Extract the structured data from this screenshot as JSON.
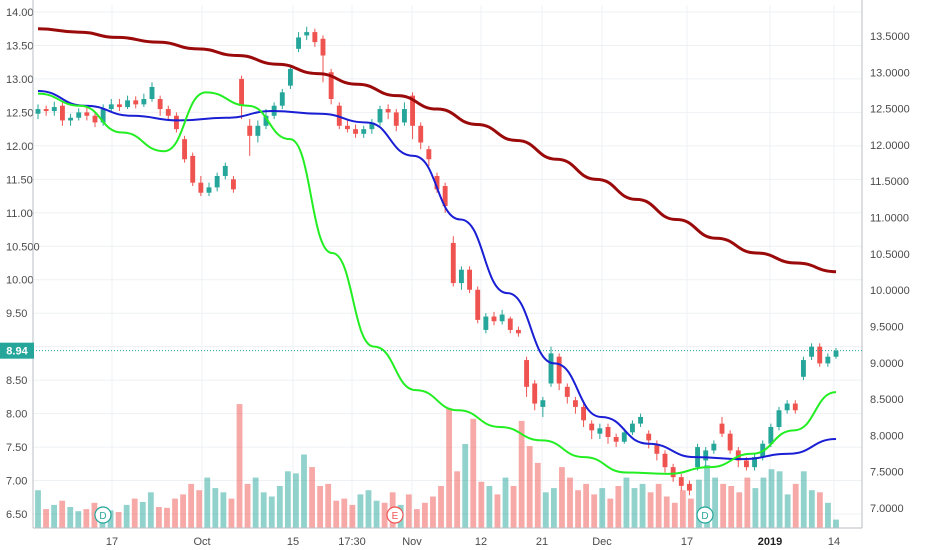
{
  "chart_data": {
    "type": "candlestick",
    "left_axis": {
      "ticks": [
        "14.00",
        "13.50",
        "13.00",
        "12.50",
        "12.00",
        "11.50",
        "11.00",
        "10.500",
        "10.00",
        "9.50",
        "9.00",
        "8.50",
        "8.00",
        "7.50",
        "7.00",
        "6.50"
      ],
      "values": [
        14.0,
        13.5,
        13.0,
        12.5,
        12.0,
        11.5,
        11.0,
        10.5,
        10.0,
        9.5,
        9.0,
        8.5,
        8.0,
        7.5,
        7.0,
        6.5
      ]
    },
    "right_axis": {
      "ticks": [
        "13.5000",
        "13.0000",
        "12.5000",
        "12.0000",
        "11.5000",
        "11.0000",
        "10.5000",
        "10.0000",
        "9.5000",
        "9.0000",
        "8.5000",
        "8.0000",
        "7.5000",
        "7.0000"
      ],
      "values": [
        13.5,
        13.0,
        12.5,
        12.0,
        11.5,
        11.0,
        10.5,
        10.0,
        9.5,
        9.0,
        8.5,
        8.0,
        7.5,
        7.0
      ]
    },
    "x_ticks": [
      {
        "label": "17",
        "bold": false
      },
      {
        "label": "Oct",
        "bold": false
      },
      {
        "label": "15",
        "bold": false
      },
      {
        "label": "17:30",
        "bold": false
      },
      {
        "label": "Nov",
        "bold": false
      },
      {
        "label": "12",
        "bold": false
      },
      {
        "label": "21",
        "bold": false
      },
      {
        "label": "Dec",
        "bold": false
      },
      {
        "label": "17",
        "bold": false
      },
      {
        "label": "2019",
        "bold": true
      },
      {
        "label": "14",
        "bold": false
      }
    ],
    "last_price": {
      "label": "8.94",
      "value": 8.94,
      "color": "#26a69a"
    },
    "badges": [
      {
        "letter": "D",
        "color": "#26a69a"
      },
      {
        "letter": "E",
        "color": "#ef5350"
      },
      {
        "letter": "D",
        "color": "#26a69a"
      }
    ],
    "candles": [
      [
        12.48,
        12.55,
        12.62,
        12.4
      ],
      [
        12.55,
        12.52,
        12.6,
        12.45
      ],
      [
        12.52,
        12.58,
        12.66,
        12.45
      ],
      [
        12.6,
        12.38,
        12.65,
        12.3
      ],
      [
        12.38,
        12.42,
        12.48,
        12.3
      ],
      [
        12.42,
        12.5,
        12.56,
        12.38
      ],
      [
        12.5,
        12.45,
        12.58,
        12.38
      ],
      [
        12.45,
        12.35,
        12.52,
        12.28
      ],
      [
        12.35,
        12.55,
        12.62,
        12.3
      ],
      [
        12.55,
        12.62,
        12.7,
        12.5
      ],
      [
        12.62,
        12.58,
        12.7,
        12.52
      ],
      [
        12.58,
        12.68,
        12.75,
        12.55
      ],
      [
        12.68,
        12.62,
        12.74,
        12.56
      ],
      [
        12.62,
        12.7,
        12.78,
        12.58
      ],
      [
        12.7,
        12.88,
        12.95,
        12.66
      ],
      [
        12.7,
        12.55,
        12.75,
        12.45
      ],
      [
        12.55,
        12.45,
        12.6,
        12.38
      ],
      [
        12.45,
        12.25,
        12.5,
        12.2
      ],
      [
        12.1,
        11.8,
        12.15,
        11.75
      ],
      [
        11.85,
        11.45,
        11.9,
        11.4
      ],
      [
        11.45,
        11.3,
        11.55,
        11.25
      ],
      [
        11.3,
        11.38,
        11.45,
        11.25
      ],
      [
        11.38,
        11.55,
        11.6,
        11.32
      ],
      [
        11.55,
        11.7,
        11.75,
        11.5
      ],
      [
        11.5,
        11.35,
        11.55,
        11.3
      ],
      [
        13.0,
        12.6,
        13.05,
        12.4
      ],
      [
        12.3,
        12.15,
        12.4,
        11.85
      ],
      [
        12.15,
        12.3,
        12.38,
        12.05
      ],
      [
        12.3,
        12.45,
        12.55,
        12.25
      ],
      [
        12.45,
        12.6,
        12.65,
        12.4
      ],
      [
        12.6,
        12.8,
        12.85,
        12.55
      ],
      [
        12.9,
        13.15,
        13.2,
        12.85
      ],
      [
        13.45,
        13.62,
        13.7,
        13.4
      ],
      [
        13.65,
        13.7,
        13.78,
        13.58
      ],
      [
        13.7,
        13.55,
        13.75,
        13.48
      ],
      [
        13.6,
        13.35,
        13.65,
        12.95
      ],
      [
        13.1,
        12.7,
        13.15,
        12.62
      ],
      [
        12.6,
        12.3,
        12.65,
        12.25
      ],
      [
        12.3,
        12.25,
        12.4,
        12.2
      ],
      [
        12.25,
        12.18,
        12.32,
        12.12
      ],
      [
        12.18,
        12.25,
        12.3,
        12.12
      ],
      [
        12.25,
        12.35,
        12.4,
        12.18
      ],
      [
        12.35,
        12.55,
        12.6,
        12.3
      ],
      [
        12.55,
        12.5,
        12.62,
        12.4
      ],
      [
        12.5,
        12.3,
        12.55,
        12.22
      ],
      [
        12.35,
        12.55,
        12.65,
        12.3
      ],
      [
        12.75,
        12.3,
        12.8,
        12.1
      ],
      [
        12.3,
        12.05,
        12.35,
        11.95
      ],
      [
        11.95,
        11.8,
        12.0,
        11.7
      ],
      [
        11.55,
        11.35,
        11.6,
        11.3
      ],
      [
        11.4,
        11.1,
        11.45,
        11.0
      ],
      [
        10.55,
        9.95,
        10.65,
        9.9
      ],
      [
        9.95,
        10.15,
        10.2,
        9.85
      ],
      [
        10.15,
        9.85,
        10.2,
        9.8
      ],
      [
        9.85,
        9.4,
        9.9,
        9.35
      ],
      [
        9.25,
        9.45,
        9.5,
        9.2
      ],
      [
        9.45,
        9.38,
        9.52,
        9.32
      ],
      [
        9.38,
        9.48,
        9.55,
        9.33
      ],
      [
        9.42,
        9.25,
        9.45,
        9.2
      ],
      [
        9.25,
        9.2,
        9.3,
        9.15
      ],
      [
        8.8,
        8.4,
        8.85,
        8.25
      ],
      [
        8.45,
        8.15,
        8.5,
        8.05
      ],
      [
        8.1,
        8.2,
        8.25,
        7.95
      ],
      [
        8.45,
        8.9,
        9.0,
        8.4
      ],
      [
        8.85,
        8.45,
        8.9,
        8.35
      ],
      [
        8.4,
        8.25,
        8.45,
        8.15
      ],
      [
        8.2,
        8.1,
        8.25,
        8.0
      ],
      [
        8.1,
        7.9,
        8.15,
        7.8
      ],
      [
        7.85,
        7.75,
        7.9,
        7.62
      ],
      [
        7.7,
        7.78,
        7.85,
        7.62
      ],
      [
        7.8,
        7.65,
        7.85,
        7.55
      ],
      [
        7.65,
        7.58,
        7.7,
        7.5
      ],
      [
        7.58,
        7.72,
        7.78,
        7.55
      ],
      [
        7.72,
        7.85,
        7.9,
        7.68
      ],
      [
        7.85,
        7.95,
        8.0,
        7.8
      ],
      [
        7.7,
        7.6,
        7.75,
        7.48
      ],
      [
        7.55,
        7.4,
        7.6,
        7.3
      ],
      [
        7.4,
        7.2,
        7.45,
        7.12
      ],
      [
        7.2,
        7.05,
        7.25,
        6.98
      ],
      [
        7.05,
        6.92,
        7.1,
        6.85
      ],
      [
        6.95,
        6.85,
        7.0,
        6.78
      ],
      [
        7.2,
        7.5,
        7.55,
        7.15
      ],
      [
        7.3,
        7.45,
        7.5,
        7.2
      ],
      [
        7.45,
        7.55,
        7.6,
        7.4
      ],
      [
        7.85,
        7.7,
        7.95,
        7.65
      ],
      [
        7.7,
        7.45,
        7.75,
        7.4
      ],
      [
        7.45,
        7.3,
        7.5,
        7.2
      ],
      [
        7.3,
        7.2,
        7.35,
        7.15
      ],
      [
        7.2,
        7.35,
        7.4,
        7.15
      ],
      [
        7.35,
        7.55,
        7.6,
        7.3
      ],
      [
        7.55,
        7.8,
        7.85,
        7.5
      ],
      [
        7.8,
        8.05,
        8.1,
        7.75
      ],
      [
        8.05,
        8.15,
        8.2,
        8.0
      ],
      [
        8.15,
        8.05,
        8.2,
        8.0
      ],
      [
        8.55,
        8.8,
        8.85,
        8.5
      ],
      [
        8.85,
        9.0,
        9.05,
        8.8
      ],
      [
        9.0,
        8.75,
        9.05,
        8.7
      ],
      [
        8.75,
        8.85,
        8.9,
        8.7
      ],
      [
        8.85,
        8.94,
        8.98,
        8.82
      ]
    ],
    "ma_dark_red": [
      13.75,
      13.7,
      13.62,
      13.55,
      13.45,
      13.35,
      13.22,
      13.08,
      12.92,
      12.75,
      12.55,
      12.32,
      12.08,
      11.8,
      11.5,
      11.2,
      10.9,
      10.62,
      10.4,
      10.25,
      10.12
    ],
    "ma_blue": [
      12.82,
      12.6,
      12.45,
      12.38,
      12.42,
      12.52,
      12.48,
      12.35,
      11.85,
      10.9,
      9.8,
      8.75,
      7.95,
      7.55,
      7.35,
      7.32,
      7.4,
      7.62
    ],
    "ma_green": [
      12.78,
      12.6,
      12.2,
      11.92,
      12.8,
      12.6,
      12.1,
      10.4,
      9.0,
      8.35,
      8.05,
      7.8,
      7.6,
      7.35,
      7.12,
      7.1,
      7.2,
      7.4,
      7.75,
      8.32
    ],
    "volume": [
      0.9,
      0.45,
      0.55,
      0.65,
      0.5,
      0.4,
      0.45,
      0.6,
      0.5,
      0.42,
      0.38,
      0.55,
      0.7,
      0.62,
      0.85,
      0.5,
      0.48,
      0.7,
      0.8,
      1.05,
      0.9,
      1.2,
      0.95,
      0.85,
      0.7,
      2.95,
      1.05,
      1.2,
      0.85,
      0.75,
      1.0,
      1.35,
      1.3,
      1.75,
      1.45,
      1.0,
      1.05,
      0.65,
      0.7,
      0.55,
      0.8,
      0.9,
      0.65,
      0.6,
      0.85,
      0.55,
      0.8,
      0.45,
      0.6,
      0.75,
      1.0,
      2.85,
      1.35,
      2.0,
      2.6,
      1.1,
      1.0,
      0.8,
      1.2,
      1.0,
      2.55,
      1.95,
      1.55,
      0.85,
      0.95,
      1.45,
      1.2,
      0.9,
      1.05,
      0.8,
      0.95,
      0.7,
      1.0,
      1.2,
      0.95,
      1.05,
      0.85,
      1.05,
      0.75,
      0.6,
      0.9,
      0.7,
      1.15,
      1.5,
      1.2,
      1.05,
      1.0,
      0.85,
      1.2,
      0.95,
      1.2,
      1.4,
      1.35,
      0.8,
      1.05,
      1.35,
      0.9,
      0.85,
      0.6,
      0.2
    ]
  }
}
